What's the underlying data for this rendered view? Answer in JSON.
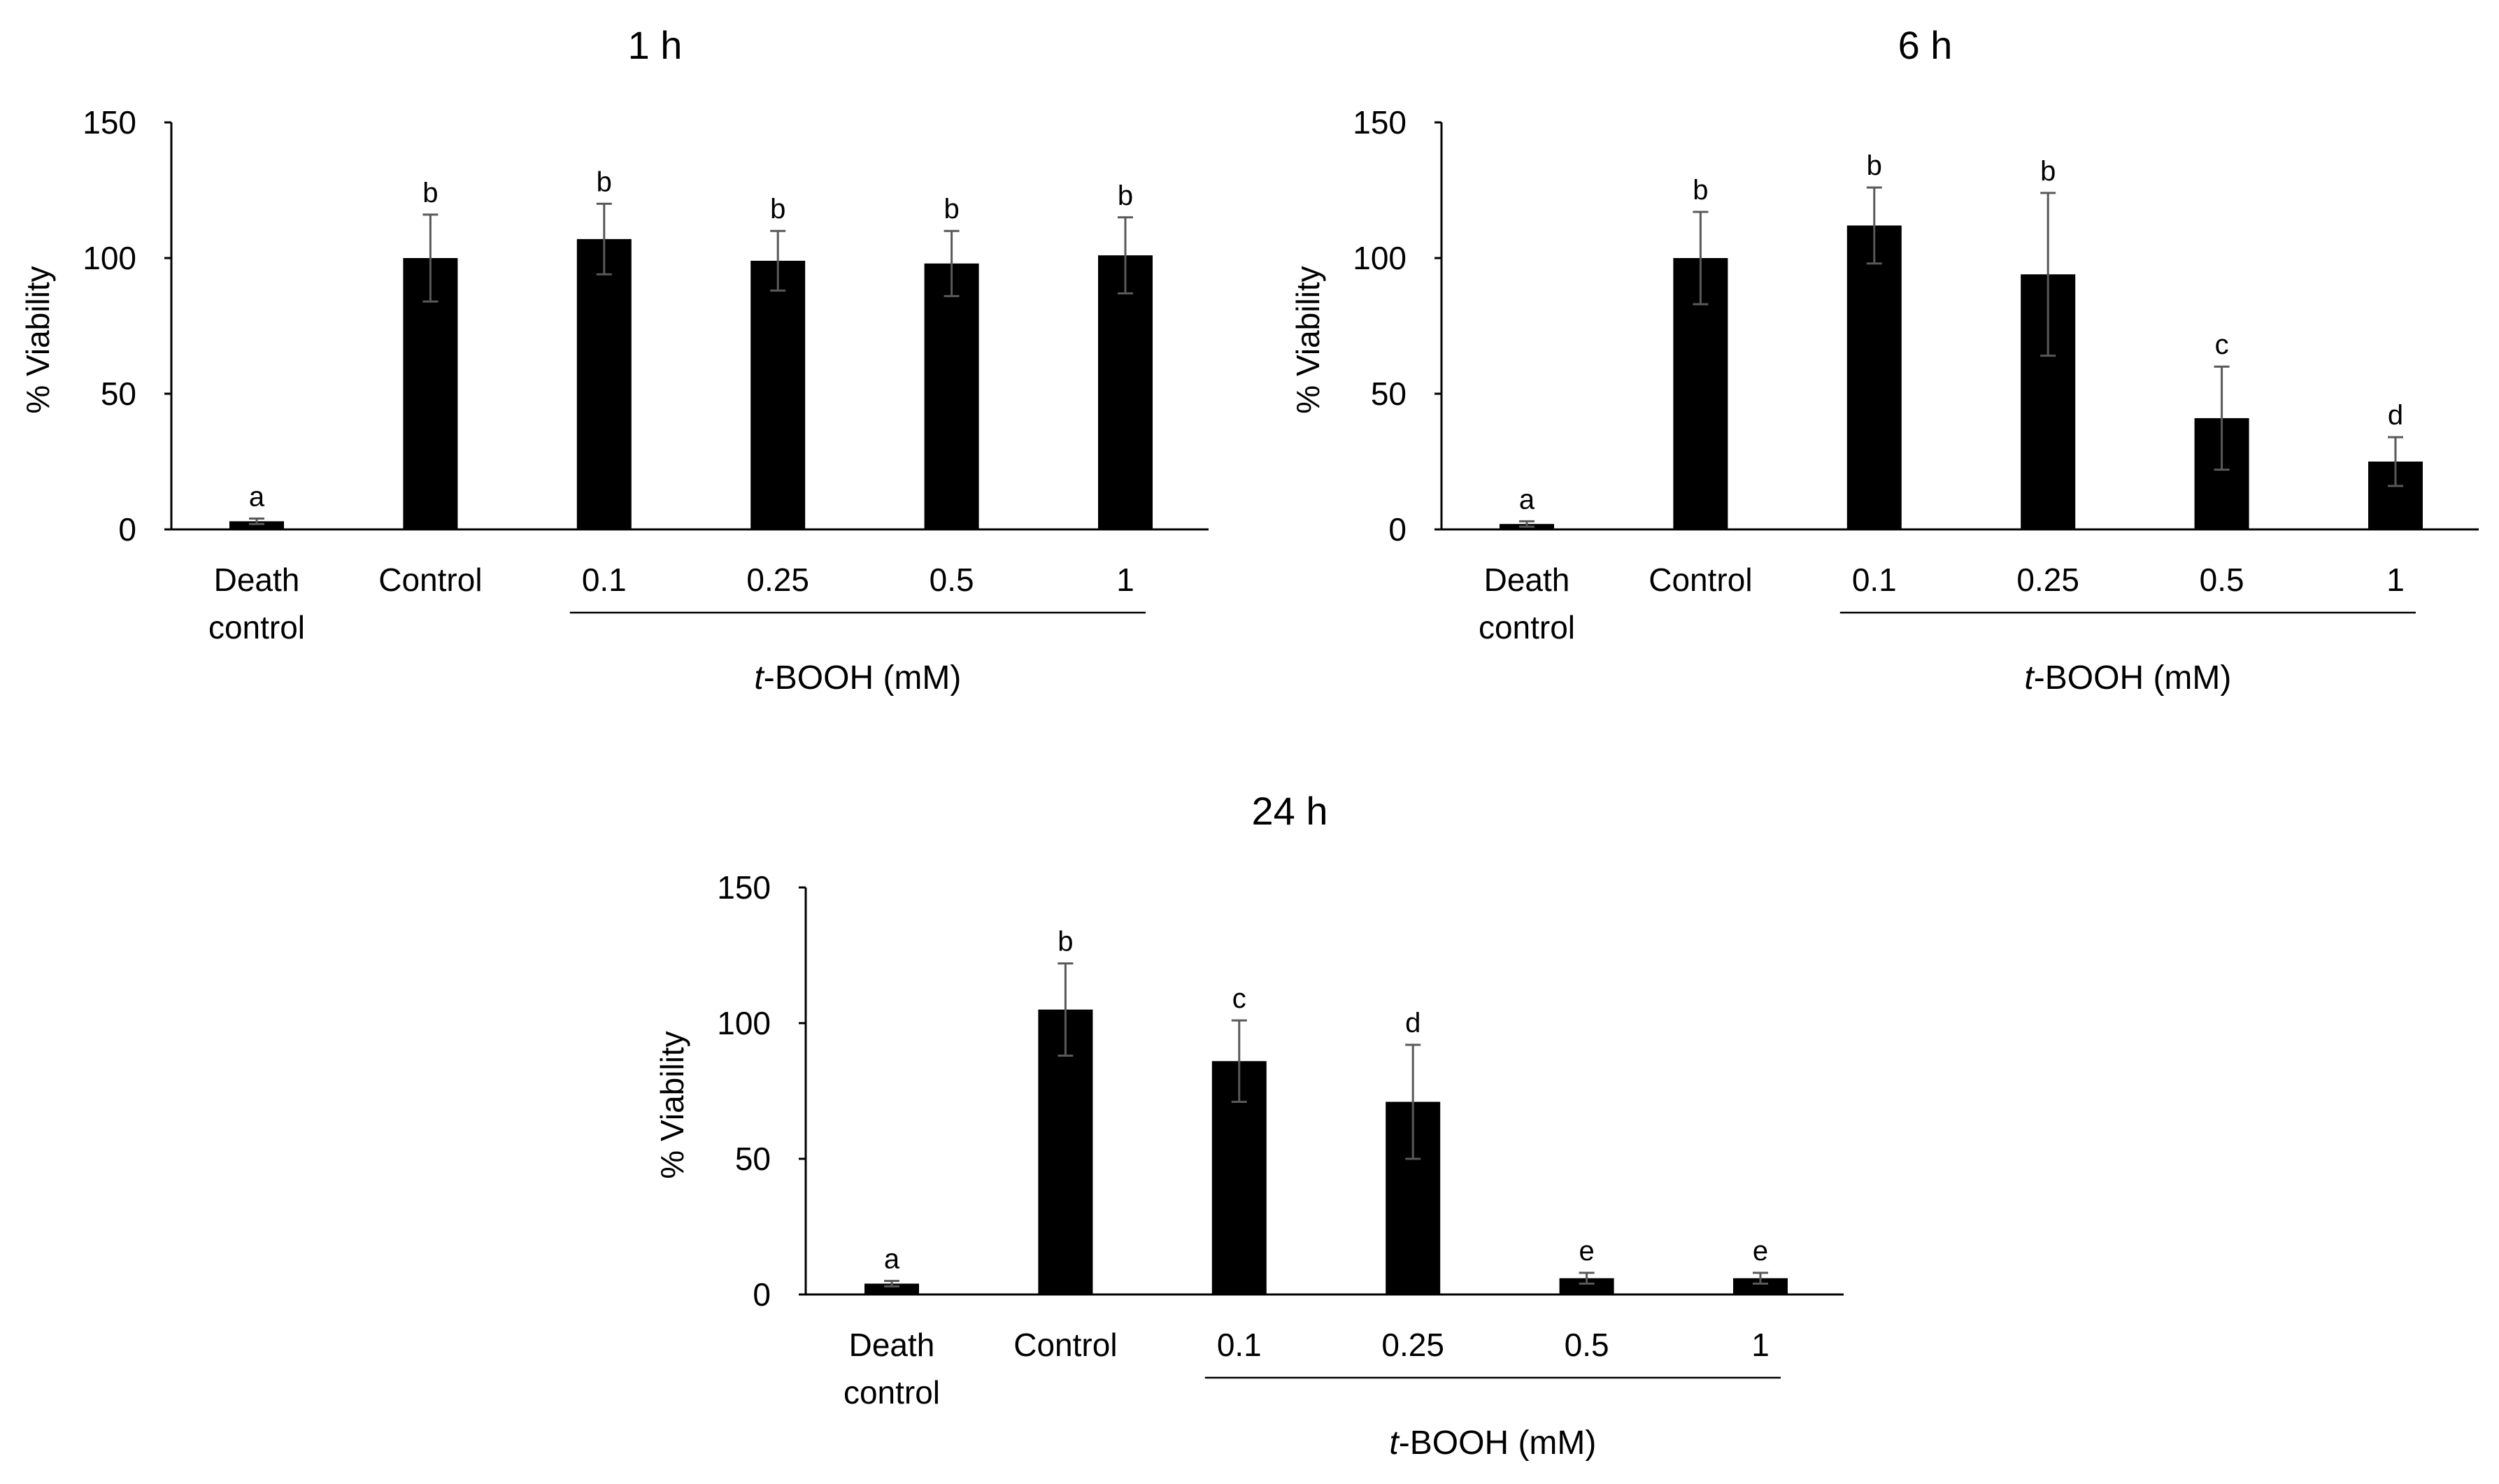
{
  "figure": {
    "group_label_italic": "t",
    "group_label_rest": "-BOOH (mM)"
  },
  "chart_data": [
    {
      "type": "bar",
      "title": "1 h",
      "ylabel": "% Viability",
      "xlabel": "t-BOOH (mM)",
      "ylim": [
        0,
        150
      ],
      "yticks": [
        "0",
        "50",
        "100",
        "150"
      ],
      "categories": [
        [
          "Death",
          "control"
        ],
        [
          "Control"
        ],
        [
          "0.1"
        ],
        [
          "0.25"
        ],
        [
          "0.5"
        ],
        [
          "1"
        ]
      ],
      "values": [
        3,
        100,
        107,
        99,
        98,
        101
      ],
      "errors": [
        1,
        16,
        13,
        11,
        12,
        14
      ],
      "significance": [
        "a",
        "b",
        "b",
        "b",
        "b",
        "b"
      ],
      "group_bracket": [
        2,
        5
      ],
      "grid": false,
      "bar_color": "#000000"
    },
    {
      "type": "bar",
      "title": "6 h",
      "ylabel": "% Viability",
      "xlabel": "t-BOOH (mM)",
      "ylim": [
        0,
        150
      ],
      "yticks": [
        "0",
        "50",
        "100",
        "150"
      ],
      "categories": [
        [
          "Death",
          "control"
        ],
        [
          "Control"
        ],
        [
          "0.1"
        ],
        [
          "0.25"
        ],
        [
          "0.5"
        ],
        [
          "1"
        ]
      ],
      "values": [
        2,
        100,
        112,
        94,
        41,
        25
      ],
      "errors": [
        1,
        17,
        14,
        30,
        19,
        9
      ],
      "significance": [
        "a",
        "b",
        "b",
        "b",
        "c",
        "d"
      ],
      "group_bracket": [
        2,
        5
      ],
      "grid": false,
      "bar_color": "#000000"
    },
    {
      "type": "bar",
      "title": "24 h",
      "ylabel": "% Viability",
      "xlabel": "t-BOOH (mM)",
      "ylim": [
        0,
        150
      ],
      "yticks": [
        "0",
        "50",
        "100",
        "150"
      ],
      "categories": [
        [
          "Death",
          "control"
        ],
        [
          "Control"
        ],
        [
          "0.1"
        ],
        [
          "0.25"
        ],
        [
          "0.5"
        ],
        [
          "1"
        ]
      ],
      "values": [
        4,
        105,
        86,
        71,
        6,
        6
      ],
      "errors": [
        1,
        17,
        15,
        21,
        2,
        2
      ],
      "significance": [
        "a",
        "b",
        "c",
        "d",
        "e",
        "e"
      ],
      "group_bracket": [
        2,
        5
      ],
      "grid": false,
      "bar_color": "#000000"
    }
  ]
}
